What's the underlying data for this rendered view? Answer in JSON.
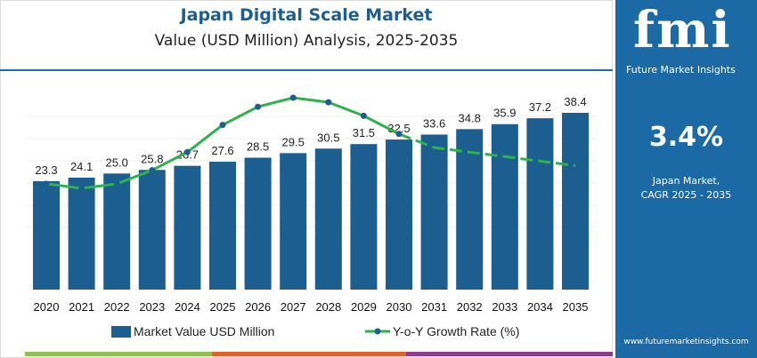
{
  "header": {
    "title": "Japan Digital Scale Market",
    "subtitle": "Value (USD Million) Analysis, 2025-2035"
  },
  "sidebar": {
    "logo_text": "fmi",
    "logo_subtitle": "Future Market Insights",
    "cagr_value": "3.4%",
    "cagr_label_1": "Japan Market,",
    "cagr_label_2": "CAGR 2025 - 2035",
    "url": "www.futuremarketinsights.com"
  },
  "colors": {
    "bar": "#1b5e8f",
    "line": "#2db34a",
    "marker": "#1b5e8f",
    "sidebar": "#1b6aa5",
    "stripe": [
      "#8dc152",
      "#e0622c",
      "#8e3a8e"
    ]
  },
  "chart_data": {
    "type": "bar",
    "categories": [
      "2020",
      "2021",
      "2022",
      "2023",
      "2024",
      "2025",
      "2026",
      "2027",
      "2028",
      "2029",
      "2030",
      "2031",
      "2032",
      "2033",
      "2034",
      "2035"
    ],
    "series": [
      {
        "name": "Market Value USD Million",
        "type": "bar",
        "values": [
          23.3,
          24.1,
          25.0,
          25.8,
          26.7,
          27.6,
          28.5,
          29.5,
          30.5,
          31.5,
          32.5,
          33.6,
          34.8,
          35.9,
          37.2,
          38.4
        ]
      },
      {
        "name": "Y-o-Y Growth Rate (%)",
        "type": "line",
        "values": [
          2.6,
          2.5,
          2.6,
          2.9,
          3.3,
          3.9,
          4.3,
          4.5,
          4.4,
          4.1,
          3.7,
          3.4,
          3.3,
          3.2,
          3.1,
          3.0
        ]
      }
    ],
    "data_labels": [
      "23.3",
      "24.1",
      "25.0",
      "25.8",
      "26.7",
      "27.6",
      "28.5",
      "29.5",
      "30.5",
      "31.5",
      "32.5",
      "33.6",
      "34.8",
      "35.9",
      "37.2",
      "38.4"
    ],
    "ylim": [
      0,
      45
    ],
    "grid": true,
    "legend": "bottom"
  }
}
